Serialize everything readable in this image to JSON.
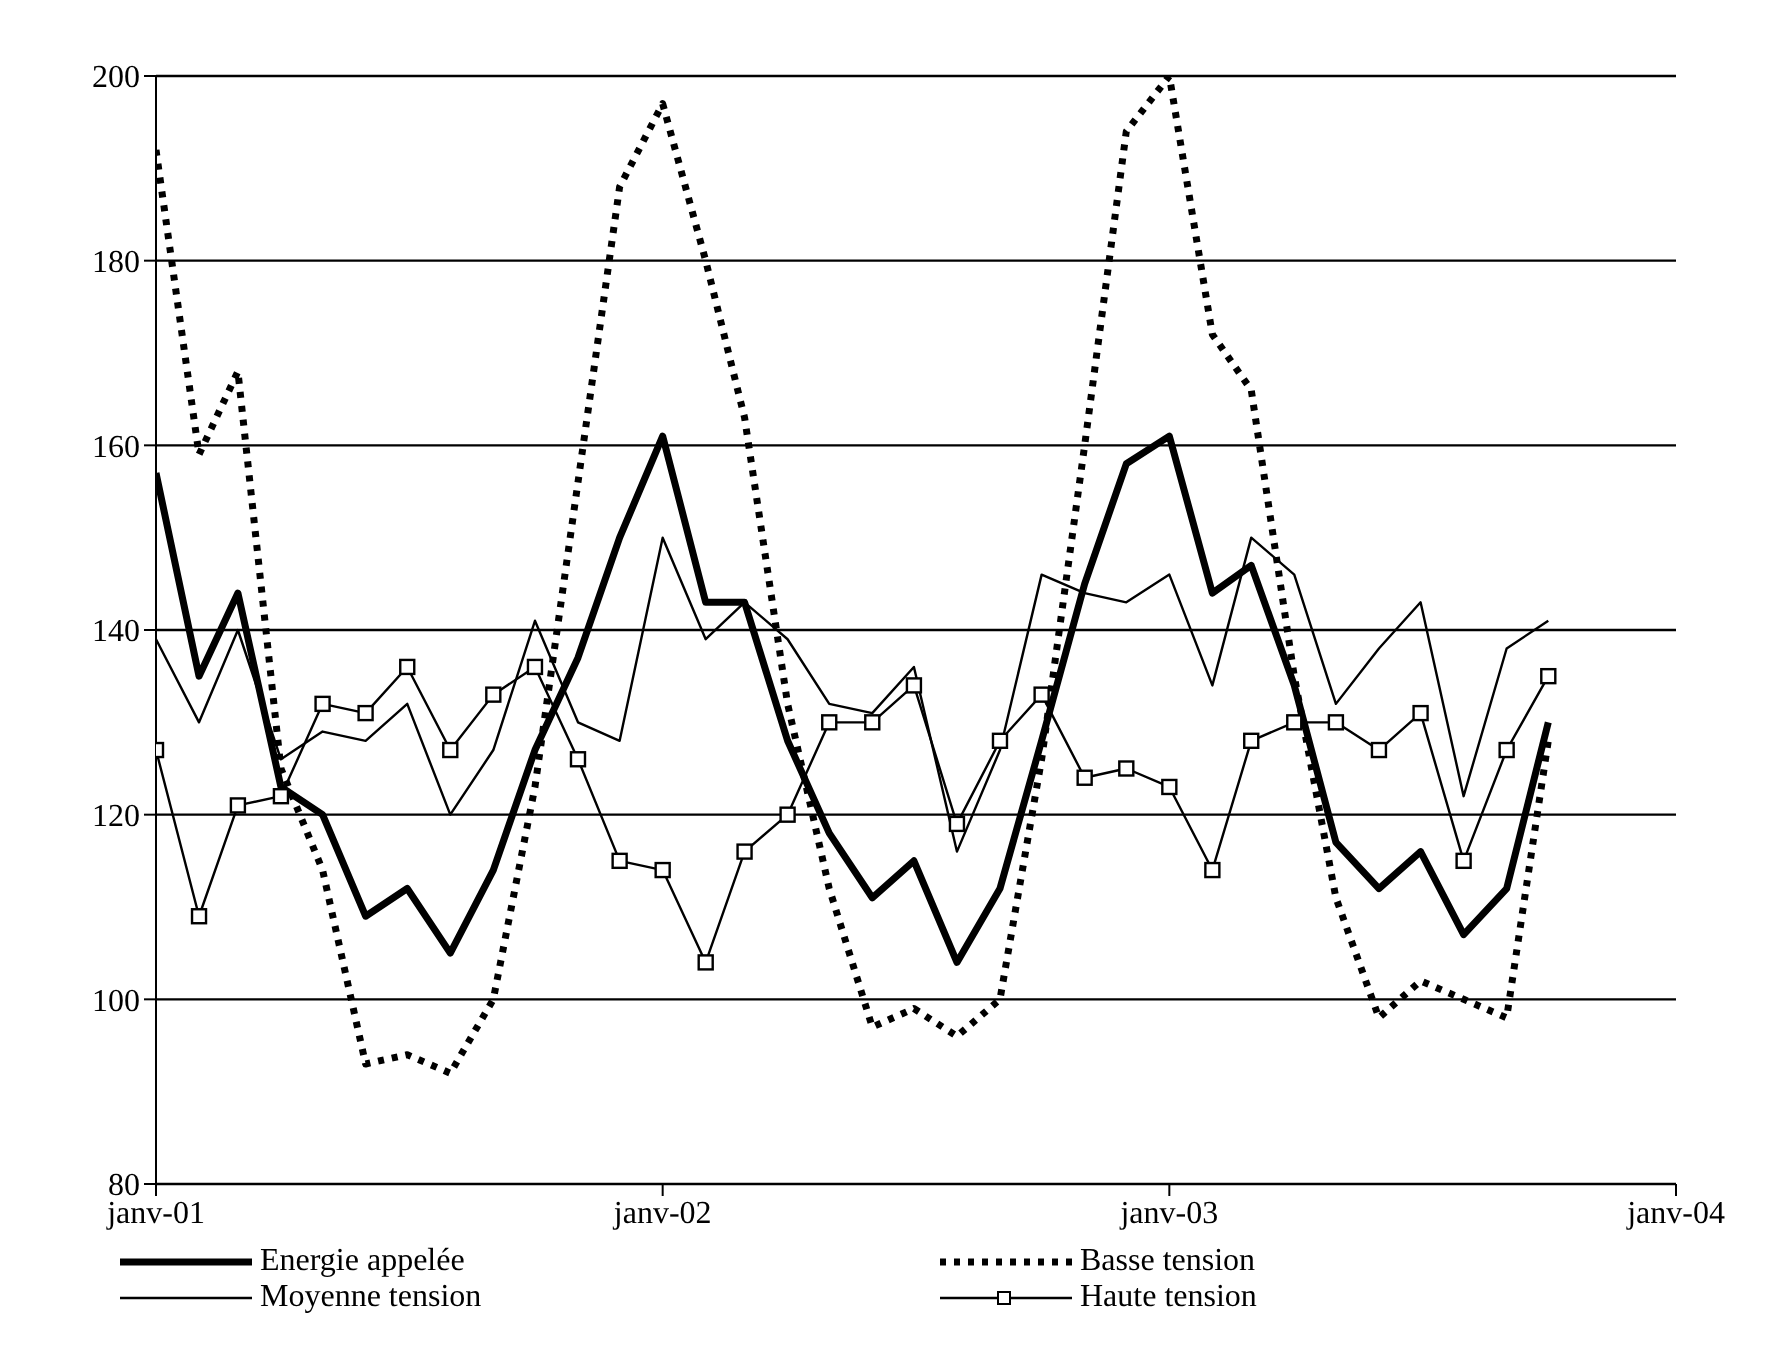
{
  "chart_data": {
    "type": "line",
    "x": [
      "2001-01",
      "2001-02",
      "2001-03",
      "2001-04",
      "2001-05",
      "2001-06",
      "2001-07",
      "2001-08",
      "2001-09",
      "2001-10",
      "2001-11",
      "2001-12",
      "2002-01",
      "2002-02",
      "2002-03",
      "2002-04",
      "2002-05",
      "2002-06",
      "2002-07",
      "2002-08",
      "2002-09",
      "2002-10",
      "2002-11",
      "2002-12",
      "2003-01",
      "2003-02",
      "2003-03",
      "2003-04",
      "2003-05",
      "2003-06",
      "2003-07",
      "2003-08",
      "2003-09",
      "2003-10"
    ],
    "series": [
      {
        "name": "Energie appelée",
        "color": "#000000",
        "line_style": "solid",
        "marker": "none",
        "values": [
          157,
          135,
          144,
          123,
          120,
          109,
          112,
          105,
          114,
          127,
          137,
          150,
          161,
          143,
          143,
          128,
          118,
          111,
          115,
          104,
          112,
          128,
          145,
          158,
          161,
          144,
          147,
          134,
          117,
          112,
          116,
          107,
          112,
          130
        ]
      },
      {
        "name": "Basse tension",
        "color": "#000000",
        "line_style": "dotted",
        "marker": "none",
        "values": [
          192,
          159,
          168,
          125,
          114,
          93,
          94,
          92,
          100,
          123,
          156,
          188,
          197,
          180,
          163,
          132,
          112,
          97,
          99,
          96,
          100,
          126,
          160,
          194,
          200,
          172,
          166,
          135,
          111,
          98,
          102,
          100,
          98,
          128
        ]
      },
      {
        "name": "Moyenne tension",
        "color": "#000000",
        "line_style": "solid",
        "marker": "none",
        "values": [
          139,
          130,
          140,
          126,
          129,
          128,
          132,
          120,
          127,
          141,
          130,
          128,
          150,
          139,
          143,
          139,
          132,
          131,
          136,
          116,
          127,
          146,
          144,
          143,
          146,
          134,
          150,
          146,
          132,
          138,
          143,
          122,
          138,
          141
        ]
      },
      {
        "name": "Haute tension",
        "color": "#000000",
        "line_style": "solid",
        "marker": "square",
        "values": [
          127,
          109,
          121,
          122,
          132,
          131,
          136,
          127,
          133,
          136,
          126,
          115,
          114,
          104,
          116,
          120,
          130,
          130,
          134,
          119,
          128,
          133,
          124,
          125,
          123,
          114,
          128,
          130,
          130,
          127,
          131,
          115,
          127,
          135
        ]
      }
    ],
    "xlim": [
      "2001-01",
      "2004-01"
    ],
    "xticks": [
      {
        "value": "2001-01",
        "label": "janv-01"
      },
      {
        "value": "2002-01",
        "label": "janv-02"
      },
      {
        "value": "2003-01",
        "label": "janv-03"
      },
      {
        "value": "2004-01",
        "label": "janv-04"
      }
    ],
    "ylim": [
      80,
      200
    ],
    "yticks": [
      80,
      100,
      120,
      140,
      160,
      180,
      200
    ],
    "grid": "y",
    "legend": "bottom"
  }
}
